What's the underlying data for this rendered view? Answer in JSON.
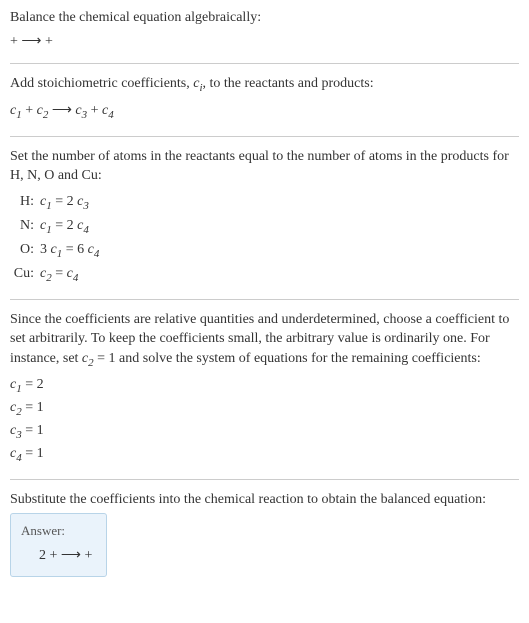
{
  "header": {
    "title": "Balance the chemical equation algebraically:",
    "equation": " +  ⟶  + "
  },
  "stoich": {
    "text_before": "Add stoichiometric coefficients, ",
    "ci_var": "c",
    "ci_sub": "i",
    "text_after": ", to the reactants and products:",
    "equation_parts": {
      "c1": "c",
      "s1": "1",
      "c2": "c",
      "s2": "2",
      "arrow": "⟶",
      "c3": "c",
      "s3": "3",
      "c4": "c",
      "s4": "4"
    }
  },
  "atoms": {
    "intro": "Set the number of atoms in the reactants equal to the number of atoms in the products for H, N, O and Cu:",
    "rows": [
      {
        "label": "H:",
        "lhs_c": "c",
        "lhs_s": "1",
        "eq": " = 2 ",
        "rhs_c": "c",
        "rhs_s": "3"
      },
      {
        "label": "N:",
        "lhs_c": "c",
        "lhs_s": "1",
        "eq": " = 2 ",
        "rhs_c": "c",
        "rhs_s": "4"
      },
      {
        "label": "O:",
        "lhs_pre": "3 ",
        "lhs_c": "c",
        "lhs_s": "1",
        "eq": " = 6 ",
        "rhs_c": "c",
        "rhs_s": "4"
      },
      {
        "label": "Cu:",
        "lhs_c": "c",
        "lhs_s": "2",
        "eq": " = ",
        "rhs_c": "c",
        "rhs_s": "4"
      }
    ]
  },
  "choose": {
    "text_before": "Since the coefficients are relative quantities and underdetermined, choose a coefficient to set arbitrarily. To keep the coefficients small, the arbitrary value is ordinarily one. For instance, set ",
    "var_c": "c",
    "var_s": "2",
    "text_mid": " = 1 and solve the system of equations for the remaining coefficients:",
    "coeffs": [
      {
        "c": "c",
        "s": "1",
        "val": " = 2"
      },
      {
        "c": "c",
        "s": "2",
        "val": " = 1"
      },
      {
        "c": "c",
        "s": "3",
        "val": " = 1"
      },
      {
        "c": "c",
        "s": "4",
        "val": " = 1"
      }
    ]
  },
  "substitute": {
    "text": "Substitute the coefficients into the chemical reaction to obtain the balanced equation:"
  },
  "answer": {
    "label": "Answer:",
    "equation": "2  +  ⟶  + "
  },
  "colors": {
    "text": "#333333",
    "hr": "#cccccc",
    "answer_bg": "#eaf3fb",
    "answer_border": "#b8d4e8"
  }
}
